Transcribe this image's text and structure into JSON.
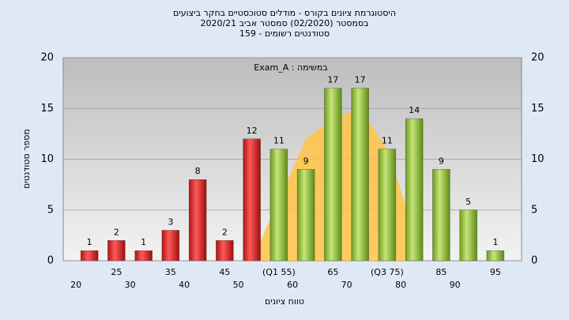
{
  "chart_data": {
    "type": "bar",
    "title": "היסטוגרמת ציונים בקורס - מודלים סטוכסטיים בחקר ביצועים",
    "subtitle": "בסמסטר  (02/2020)  סמסטר אביב  2020/21",
    "subtitle2": "סטודנטים רשומים - 159",
    "annotation": "במשימה : Exam_A",
    "x_label": "טווח ציונים",
    "y_label": "מספר סטודנטים",
    "categories": [
      "20",
      "25",
      "30",
      "35",
      "40",
      "45",
      "50",
      "(Q1 55)",
      "60",
      "65",
      "70",
      "(Q3 75)",
      "80",
      "85",
      "90",
      "95"
    ],
    "series": [
      {
        "values": [
          1,
          2,
          1,
          3,
          8,
          2,
          12,
          11,
          9,
          17,
          17,
          11,
          14,
          9,
          5,
          1
        ],
        "colors": [
          "red",
          "red",
          "red",
          "red",
          "red",
          "red",
          "red",
          "green",
          "green",
          "green",
          "green",
          "green",
          "green",
          "green",
          "green",
          "green"
        ]
      },
      {
        "type": "area",
        "color": "#ffc445",
        "values": [
          null,
          null,
          null,
          null,
          null,
          null,
          0,
          6,
          12,
          14,
          15,
          11,
          3,
          null,
          null,
          null
        ]
      }
    ],
    "ylim": [
      0,
      20
    ],
    "yticks": [
      0,
      5,
      10,
      15,
      20
    ],
    "grid": true
  }
}
